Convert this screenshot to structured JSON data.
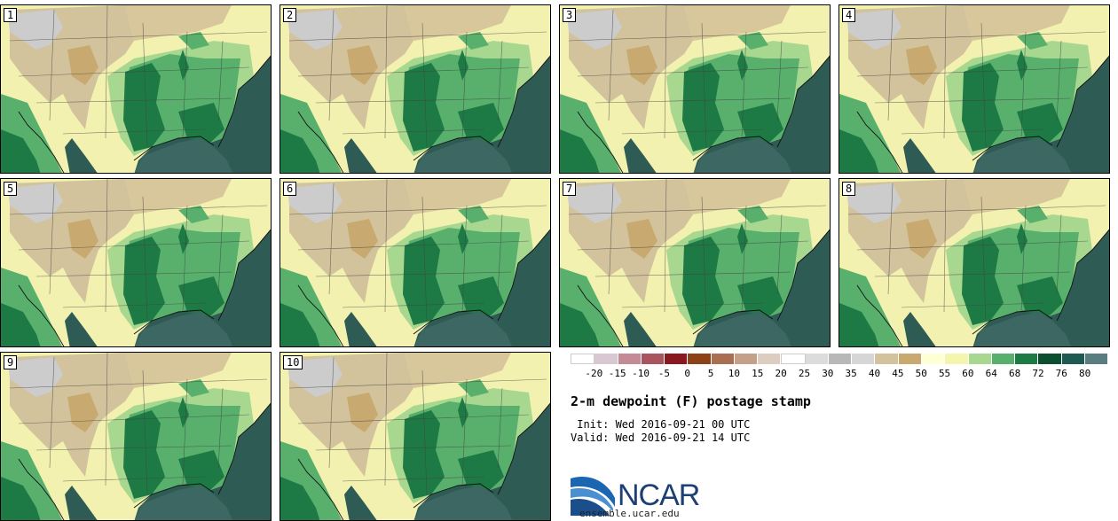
{
  "panels": [
    {
      "label": "1"
    },
    {
      "label": "2"
    },
    {
      "label": "3"
    },
    {
      "label": "4"
    },
    {
      "label": "5"
    },
    {
      "label": "6"
    },
    {
      "label": "7"
    },
    {
      "label": "8"
    },
    {
      "label": "9"
    },
    {
      "label": "10"
    }
  ],
  "legend": {
    "colors": [
      "#ffffff",
      "#d8c8d1",
      "#c48a96",
      "#a85560",
      "#8a1820",
      "#8c4216",
      "#a87050",
      "#c4a088",
      "#dccdbf",
      "#ffffff",
      "#dcdcdc",
      "#b8b8b8",
      "#d6d6d6",
      "#d2c39d",
      "#c8aa70",
      "#ffffd6",
      "#f4f6ae",
      "#a8d890",
      "#58b06c",
      "#1e7a44",
      "#0c4e30",
      "#1e5a52",
      "#5a7e80"
    ],
    "ticks": [
      "-20",
      "-15",
      "-10",
      "-5",
      "0",
      "5",
      "10",
      "15",
      "20",
      "25",
      "30",
      "35",
      "40",
      "45",
      "50",
      "55",
      "60",
      "64",
      "68",
      "72",
      "76",
      "80"
    ]
  },
  "title": "2-m dewpoint (F) postage stamp",
  "init": " Init: Wed 2016-09-21 00 UTC",
  "valid": "Valid: Wed 2016-09-21 14 UTC",
  "logo": {
    "text": "NCAR",
    "color": "#1d3f73"
  },
  "url": "ensemble.ucar.edu"
}
